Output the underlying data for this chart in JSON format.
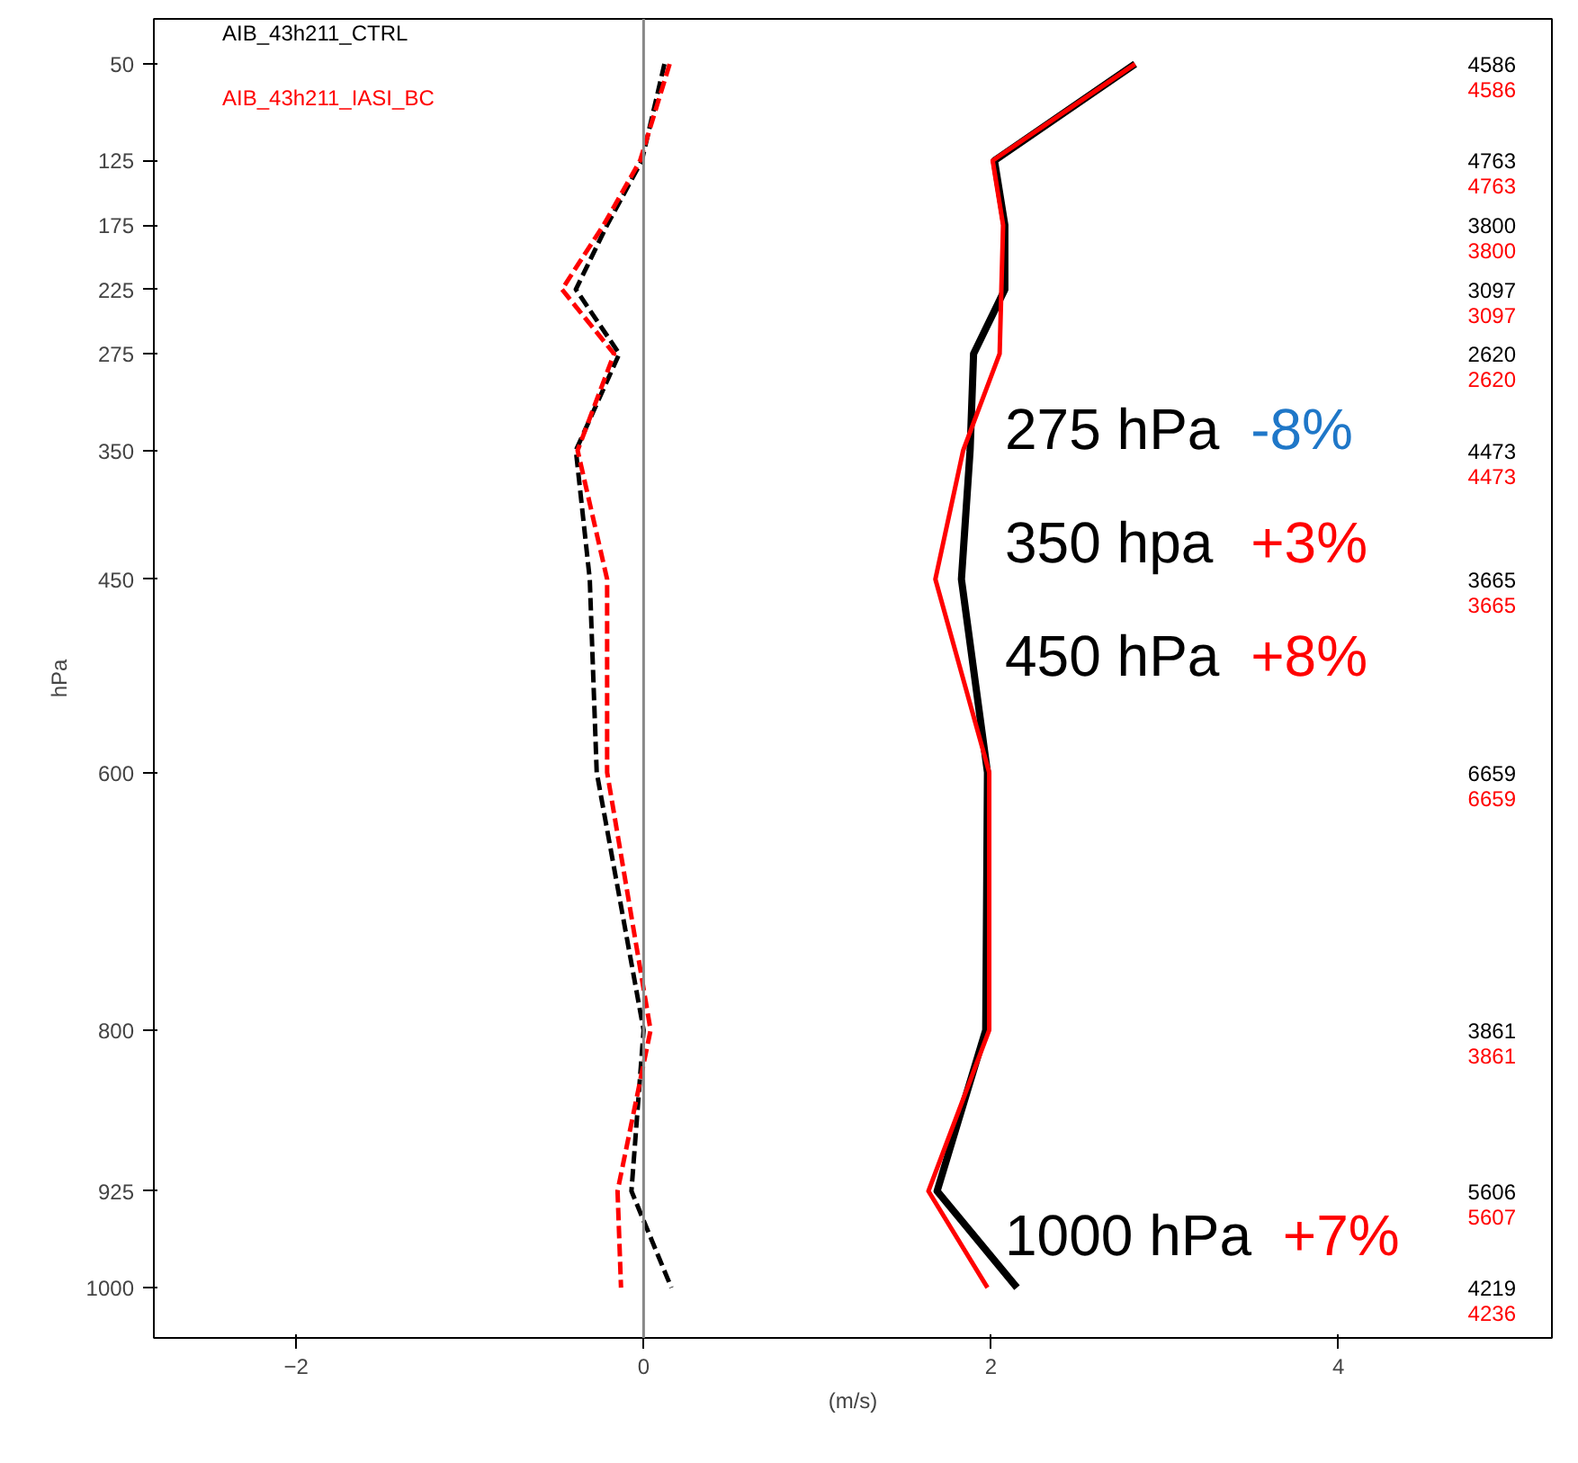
{
  "chart_data": {
    "type": "line",
    "xlabel": "(m/s)",
    "ylabel": "hPa",
    "series": [
      {
        "name": "AIB_43h211_CTRL",
        "color": "#000000",
        "line_style": "solid",
        "x": [
          2.83,
          2.02,
          2.08,
          2.08,
          1.9,
          1.88,
          1.83,
          1.98,
          1.97,
          1.69,
          2.15
        ],
        "values": [
          50,
          125,
          175,
          225,
          275,
          350,
          450,
          600,
          800,
          925,
          1000
        ]
      },
      {
        "name": "AIB_43h211_IASI_BC",
        "color": "#ff0000",
        "line_style": "solid",
        "x": [
          2.83,
          2.01,
          2.07,
          2.06,
          2.05,
          1.84,
          1.68,
          1.99,
          1.99,
          1.64,
          1.98
        ],
        "values": [
          50,
          125,
          175,
          225,
          275,
          350,
          450,
          600,
          800,
          925,
          1000
        ]
      },
      {
        "color": "#000000",
        "line_style": "dashed",
        "x": [
          0.12,
          -0.01,
          -0.21,
          -0.39,
          -0.14,
          -0.39,
          -0.31,
          -0.27,
          0.0,
          -0.07,
          0.16
        ],
        "values": [
          50,
          125,
          175,
          225,
          275,
          350,
          450,
          600,
          800,
          925,
          1000
        ]
      },
      {
        "color": "#ff0000",
        "line_style": "dashed",
        "x": [
          0.15,
          -0.02,
          -0.23,
          -0.47,
          -0.17,
          -0.38,
          -0.21,
          -0.21,
          0.04,
          -0.15,
          -0.13
        ],
        "values": [
          50,
          125,
          175,
          225,
          275,
          350,
          450,
          600,
          800,
          925,
          1000
        ]
      }
    ],
    "xlim": [
      -2.82,
      5.23
    ],
    "xticks": [
      -2,
      0,
      2,
      4
    ],
    "ylim": [
      1039,
      15
    ],
    "yticks": [
      50,
      125,
      175,
      225,
      275,
      350,
      450,
      600,
      800,
      925,
      1000
    ],
    "legend": "top left",
    "ref_lines": [
      {
        "axis": "x",
        "value": 0,
        "color": "#888888"
      }
    ],
    "annotations": [
      "4586",
      "4586",
      "4763",
      "4763",
      "3800",
      "3800",
      "3097",
      "3097",
      "2620",
      "2620",
      "4473",
      "4473",
      "3665",
      "3665",
      "6659",
      "6659",
      "3861",
      "3861",
      "5606",
      "5607",
      "4219",
      "4236",
      "275 hPa",
      "-8%",
      "350 hpa",
      "+3%",
      "450 hPa",
      "+8%",
      "1000 hPa",
      "+7%"
    ]
  }
}
